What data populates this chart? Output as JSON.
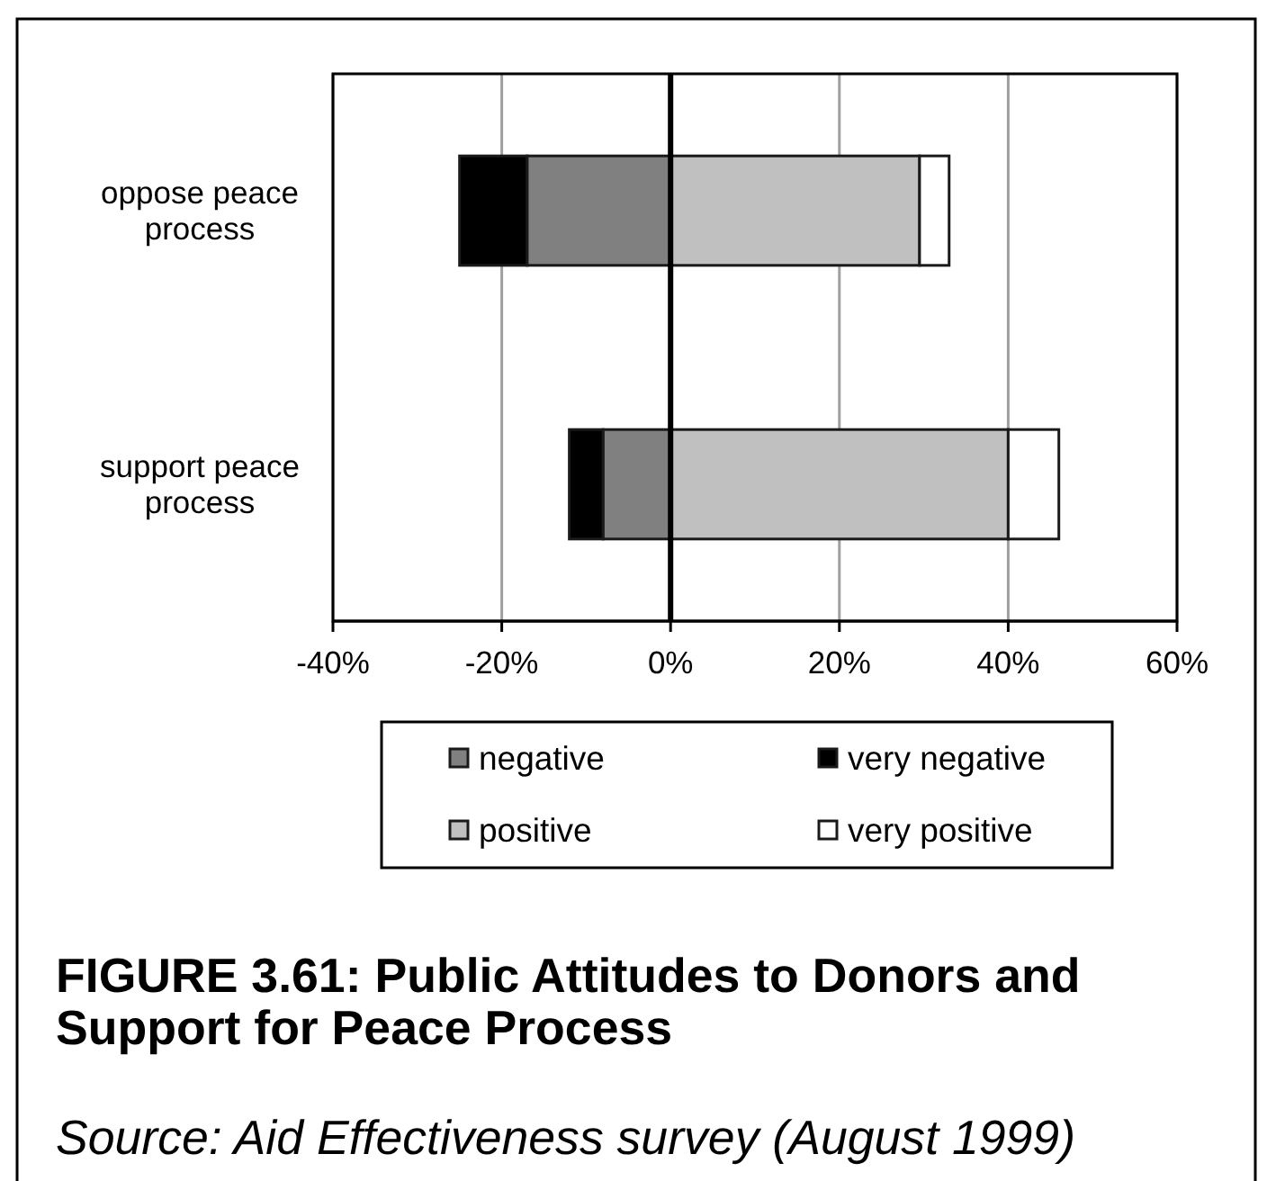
{
  "chart_data": {
    "type": "bar",
    "orientation": "horizontal",
    "stacked": true,
    "title": "FIGURE 3.61: Public Attitudes to Donors and Support for Peace Process",
    "annotations": [
      "Source: Aid Effectiveness survey (August 1999)"
    ],
    "categories": [
      "oppose peace process",
      "support peace process"
    ],
    "series": [
      {
        "name": "negative",
        "color": "#808080",
        "values": [
          -17,
          -8
        ]
      },
      {
        "name": "very negative",
        "color": "#000000",
        "values": [
          -8,
          -4
        ]
      },
      {
        "name": "positive",
        "color": "#c0c0c0",
        "values": [
          29.5,
          40
        ]
      },
      {
        "name": "very positive",
        "color": "#ffffff",
        "values": [
          3.5,
          6
        ]
      }
    ],
    "xlim": [
      -40,
      60
    ],
    "xticks": [
      {
        "value": -40,
        "label": "-40%"
      },
      {
        "value": -20,
        "label": "-20%"
      },
      {
        "value": 0,
        "label": "0%"
      },
      {
        "value": 20,
        "label": "20%"
      },
      {
        "value": 40,
        "label": "40%"
      },
      {
        "value": 60,
        "label": "60%"
      }
    ],
    "grid": "x",
    "legend": "bottom"
  }
}
